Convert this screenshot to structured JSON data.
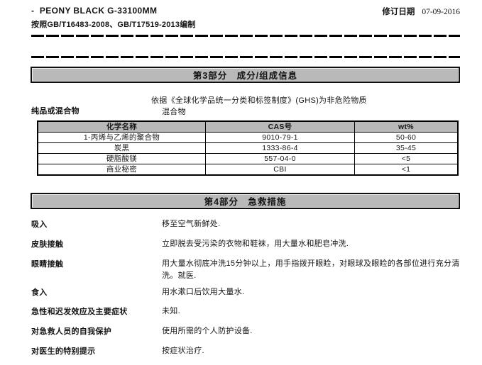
{
  "header": {
    "product_title": "-  PEONY BLACK G-33100MM",
    "prepared_according_to": "按照GB/T16483-2008、GB/T17519-2013编制",
    "revision_date_label": "修订日期",
    "revision_date": "07-09-2016"
  },
  "section3": {
    "title": "第3部分   成分/组成信息",
    "ghs_note": "依据《全球化学品统一分类和标签制度》(GHS)为非危险物质",
    "substance_or_mixture_label": "纯品或混合物",
    "substance_or_mixture_value": "混合物",
    "table": {
      "headers": [
        "化学名称",
        "CAS号",
        "wt%"
      ],
      "rows": [
        {
          "name": "1-丙烯与乙烯的聚合物",
          "cas": "9010-79-1",
          "wt": "50-60"
        },
        {
          "name": "炭黑",
          "cas": "1333-86-4",
          "wt": "35-45"
        },
        {
          "name": "硬脂酸镁",
          "cas": "557-04-0",
          "wt": "<5"
        },
        {
          "name": "商业秘密",
          "cas": "CBI",
          "wt": "<1"
        }
      ]
    }
  },
  "section4": {
    "title": "第4部分   急救措施",
    "items": [
      {
        "label": "吸入",
        "text": "移至空气新鲜处."
      },
      {
        "label": "皮肤接触",
        "text": "立即脱去受污染的衣物和鞋袜，用大量水和肥皂冲洗."
      },
      {
        "label": "眼睛接触",
        "text": "用大量水彻底冲洗15分钟以上，用手指拨开眼睑，对眼球及眼睑的各部位进行充分清洗。就医."
      },
      {
        "label": "食入",
        "text": "用水漱口后饮用大量水."
      },
      {
        "label": "急性和迟发效应及主要症状",
        "text": "未知."
      },
      {
        "label": "对急救人员的自我保护",
        "text": "使用所需的个人防护设备."
      },
      {
        "label": "对医生的特别提示",
        "text": "按症状治疗."
      }
    ]
  }
}
